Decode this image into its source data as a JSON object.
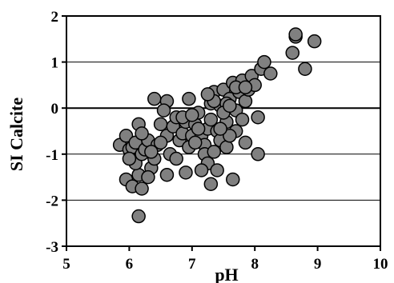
{
  "chart_data": {
    "type": "scatter",
    "title": "",
    "xlabel": "pH",
    "ylabel": "SI Calcite",
    "xlim": [
      5,
      10
    ],
    "ylim": [
      -3,
      2
    ],
    "x_ticks": [
      "5",
      "6",
      "7",
      "8",
      "9",
      "10"
    ],
    "y_ticks": [
      "-3",
      "-2",
      "-1",
      "0",
      "1",
      "2"
    ],
    "grid": "horizontal",
    "zero_line": true,
    "marker": {
      "shape": "circle",
      "fill": "#808080",
      "stroke": "#000000"
    },
    "series": [
      {
        "points": [
          [
            5.85,
            -0.8
          ],
          [
            5.95,
            -0.6
          ],
          [
            6.0,
            -0.9
          ],
          [
            6.05,
            -0.85
          ],
          [
            6.1,
            -0.75
          ],
          [
            6.15,
            -0.35
          ],
          [
            5.95,
            -1.55
          ],
          [
            6.05,
            -1.7
          ],
          [
            6.15,
            -1.45
          ],
          [
            6.2,
            -1.75
          ],
          [
            6.1,
            -1.2
          ],
          [
            6.0,
            -1.1
          ],
          [
            6.2,
            -1.0
          ],
          [
            6.25,
            -0.9
          ],
          [
            6.3,
            -0.7
          ],
          [
            6.35,
            -1.3
          ],
          [
            6.3,
            -1.5
          ],
          [
            6.4,
            -1.1
          ],
          [
            6.45,
            -0.8
          ],
          [
            6.4,
            0.2
          ],
          [
            6.6,
            0.15
          ],
          [
            6.55,
            -0.05
          ],
          [
            6.5,
            -0.35
          ],
          [
            6.6,
            -0.6
          ],
          [
            6.65,
            -1.0
          ],
          [
            6.6,
            -1.45
          ],
          [
            6.7,
            -0.4
          ],
          [
            6.75,
            -0.2
          ],
          [
            6.8,
            -0.7
          ],
          [
            6.85,
            -0.55
          ],
          [
            6.75,
            -1.1
          ],
          [
            6.9,
            -0.3
          ],
          [
            6.95,
            -0.85
          ],
          [
            7.0,
            -0.6
          ],
          [
            6.95,
            0.2
          ],
          [
            7.05,
            -0.35
          ],
          [
            7.1,
            -0.1
          ],
          [
            7.15,
            -0.6
          ],
          [
            7.2,
            -0.8
          ],
          [
            7.25,
            -0.45
          ],
          [
            7.3,
            0.1
          ],
          [
            7.35,
            0.35
          ],
          [
            7.3,
            -0.25
          ],
          [
            7.4,
            -0.5
          ],
          [
            7.45,
            0.05
          ],
          [
            7.5,
            0.4
          ],
          [
            7.45,
            -0.7
          ],
          [
            7.55,
            -0.3
          ],
          [
            7.6,
            0.2
          ],
          [
            7.65,
            0.55
          ],
          [
            7.55,
            0.1
          ],
          [
            7.7,
            -0.05
          ],
          [
            7.75,
            0.35
          ],
          [
            7.8,
            0.6
          ],
          [
            7.7,
            -0.5
          ],
          [
            7.8,
            -0.25
          ],
          [
            7.85,
            0.15
          ],
          [
            7.9,
            0.4
          ],
          [
            7.95,
            0.7
          ],
          [
            8.0,
            0.5
          ],
          [
            8.05,
            -0.2
          ],
          [
            8.1,
            0.85
          ],
          [
            8.15,
            1.0
          ],
          [
            8.25,
            0.75
          ],
          [
            8.05,
            -1.0
          ],
          [
            7.85,
            -0.75
          ],
          [
            7.2,
            -1.0
          ],
          [
            7.25,
            -1.2
          ],
          [
            7.15,
            -1.35
          ],
          [
            7.4,
            -1.35
          ],
          [
            7.3,
            -1.65
          ],
          [
            7.65,
            -1.55
          ],
          [
            6.9,
            -1.4
          ],
          [
            8.6,
            1.2
          ],
          [
            8.65,
            1.55
          ],
          [
            8.65,
            1.6
          ],
          [
            8.8,
            0.85
          ],
          [
            8.95,
            1.45
          ],
          [
            6.15,
            -2.35
          ],
          [
            7.35,
            -0.95
          ],
          [
            7.05,
            -0.75
          ],
          [
            7.55,
            -0.85
          ],
          [
            7.6,
            -0.6
          ],
          [
            7.5,
            -0.1
          ],
          [
            7.35,
            0.15
          ],
          [
            7.25,
            0.3
          ],
          [
            7.7,
            0.45
          ],
          [
            7.6,
            0.05
          ],
          [
            7.85,
            0.45
          ],
          [
            6.5,
            -0.75
          ],
          [
            6.35,
            -0.95
          ],
          [
            6.2,
            -0.55
          ],
          [
            6.85,
            -0.2
          ],
          [
            7.0,
            -0.15
          ],
          [
            7.1,
            -0.45
          ],
          [
            7.45,
            -0.45
          ]
        ]
      }
    ]
  }
}
